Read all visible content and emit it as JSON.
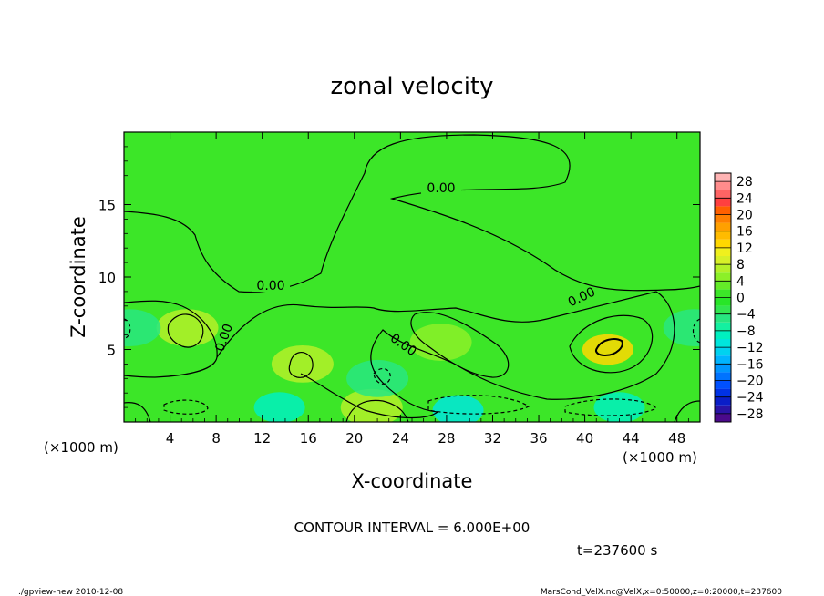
{
  "chart_data": {
    "type": "heatmap",
    "title": "zonal velocity",
    "xlabel": "X-coordinate",
    "ylabel": "Z-coordinate",
    "x_units": "(×1000 m)",
    "y_units": "(×1000 m)",
    "xlim": [
      0,
      50
    ],
    "ylim": [
      0,
      20
    ],
    "x_ticks": [
      4,
      8,
      12,
      16,
      20,
      24,
      28,
      32,
      36,
      40,
      44,
      48
    ],
    "y_ticks": [
      5,
      10,
      15
    ],
    "colorbar": {
      "labels": [
        28,
        24,
        20,
        16,
        12,
        8,
        4,
        0,
        -4,
        -8,
        -12,
        -16,
        -20,
        -24,
        -28
      ],
      "label_text": [
        "28",
        "24",
        "20",
        "16",
        "12",
        "8",
        "4",
        "0",
        "−4",
        "−8",
        "−12",
        "−16",
        "−20",
        "−24",
        "−28"
      ],
      "levels": [
        -30,
        -28,
        -26,
        -24,
        -22,
        -20,
        -18,
        -16,
        -14,
        -12,
        -10,
        -8,
        -6,
        -4,
        -2,
        0,
        2,
        4,
        6,
        8,
        10,
        12,
        14,
        16,
        18,
        20,
        22,
        24,
        26,
        28,
        30
      ],
      "colors": [
        "#4b0a8c",
        "#2a14a6",
        "#0a1ec8",
        "#0032e6",
        "#0050ff",
        "#0073ff",
        "#0096ff",
        "#00b4ff",
        "#00d2f0",
        "#00e6dc",
        "#00f0c0",
        "#14f0a0",
        "#28e680",
        "#32e650",
        "#28e628",
        "#3ce628",
        "#64eb28",
        "#8cf028",
        "#b4f028",
        "#d7f028",
        "#f0f01e",
        "#ffd800",
        "#ffbb00",
        "#ffa000",
        "#ff8000",
        "#ff6000",
        "#ff4040",
        "#ff6464",
        "#ff8c8c",
        "#ffb4b4"
      ]
    },
    "contour_labels": [
      "0.00",
      "0.00",
      "0.00",
      "0.00",
      "0.00"
    ],
    "contour_interval": "CONTOUR INTERVAL = 6.000E+00",
    "time": "t=237600 s",
    "features": [
      {
        "x": 5.5,
        "z": 6.5,
        "value": 7
      },
      {
        "x": 15.5,
        "z": 4.0,
        "value": 6
      },
      {
        "x": 27.5,
        "z": 5.5,
        "value": 5
      },
      {
        "x": 42.0,
        "z": 5.0,
        "value": 12
      },
      {
        "x": 21.5,
        "z": 1.0,
        "value": 6
      },
      {
        "x": 13.5,
        "z": 1.0,
        "value": -10
      },
      {
        "x": 29.0,
        "z": 0.8,
        "value": -12
      },
      {
        "x": 43.0,
        "z": 1.0,
        "value": -10
      },
      {
        "x": 22.0,
        "z": 3.0,
        "value": -6
      },
      {
        "x": 0.5,
        "z": 6.5,
        "value": -6
      },
      {
        "x": 49.5,
        "z": 6.5,
        "value": -6
      }
    ]
  },
  "footer": {
    "left": "./gpview-new  2010-12-08",
    "right": "MarsCond_VelX.nc@VelX,x=0:50000,z=0:20000,t=237600"
  }
}
